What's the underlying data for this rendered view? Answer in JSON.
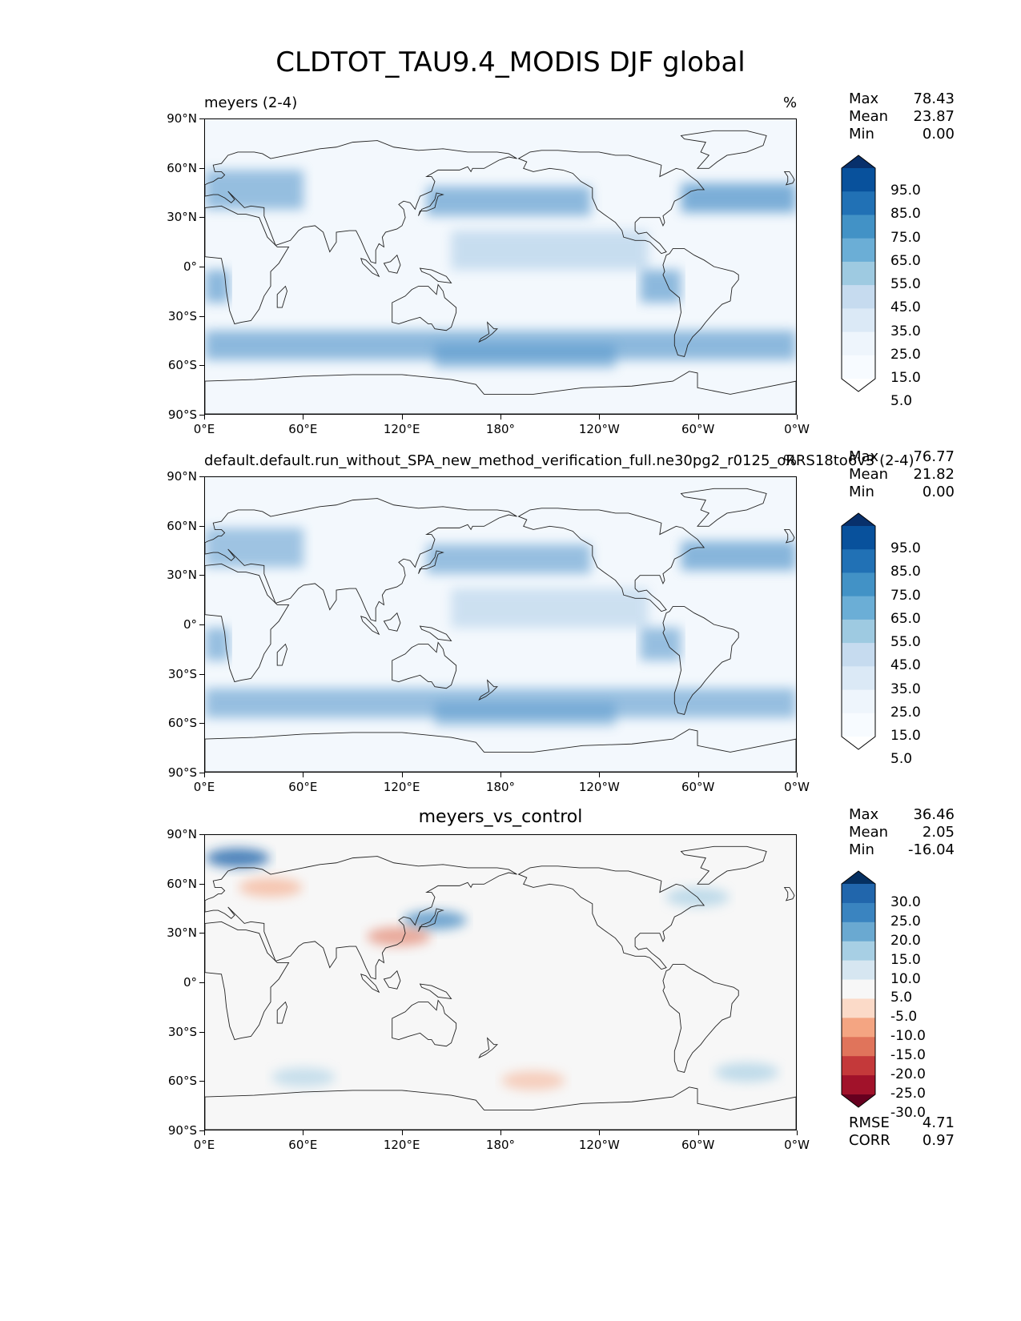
{
  "figure": {
    "title": "CLDTOT_TAU9.4_MODIS DJF global"
  },
  "axes": {
    "yticks": [
      "90°N",
      "60°N",
      "30°N",
      "0°",
      "30°S",
      "60°S",
      "90°S"
    ],
    "xticks": [
      "0°E",
      "60°E",
      "120°E",
      "180°",
      "120°W",
      "60°W",
      "0°W"
    ]
  },
  "panels": [
    {
      "title_left": "meyers (2-4)",
      "title_right": "%",
      "title_center": "",
      "stats": {
        "max_label": "Max",
        "max": "78.43",
        "mean_label": "Mean",
        "mean": "23.87",
        "min_label": "Min",
        "min": "0.00"
      },
      "colorbar": {
        "labels": [
          "95.0",
          "85.0",
          "75.0",
          "65.0",
          "55.0",
          "45.0",
          "35.0",
          "25.0",
          "15.0",
          "5.0"
        ],
        "colors": [
          "#08306b",
          "#08519c",
          "#2171b5",
          "#4292c6",
          "#6baed6",
          "#9ecae1",
          "#c6dbef",
          "#dbe9f6",
          "#eef5fc",
          "#f7fbff",
          "#ffffff"
        ]
      }
    },
    {
      "title_left": "default.default.run_without_SPA_new_method_verification_full.ne30pg2_r0125_oRRS18to6v3 (2-4)",
      "title_right": "%",
      "title_center": "",
      "stats": {
        "max_label": "Max",
        "max": "76.77",
        "mean_label": "Mean",
        "mean": "21.82",
        "min_label": "Min",
        "min": "0.00"
      },
      "colorbar": {
        "labels": [
          "95.0",
          "85.0",
          "75.0",
          "65.0",
          "55.0",
          "45.0",
          "35.0",
          "25.0",
          "15.0",
          "5.0"
        ],
        "colors": [
          "#08306b",
          "#08519c",
          "#2171b5",
          "#4292c6",
          "#6baed6",
          "#9ecae1",
          "#c6dbef",
          "#dbe9f6",
          "#eef5fc",
          "#f7fbff",
          "#ffffff"
        ]
      }
    },
    {
      "title_left": "",
      "title_right": "",
      "title_center": "meyers_vs_control",
      "stats": {
        "max_label": "Max",
        "max": "36.46",
        "mean_label": "Mean",
        "mean": "2.05",
        "min_label": "Min",
        "min": "-16.04"
      },
      "colorbar": {
        "labels": [
          "30.0",
          "25.0",
          "20.0",
          "15.0",
          "10.0",
          "5.0",
          "-5.0",
          "-10.0",
          "-15.0",
          "-20.0",
          "-25.0",
          "-30.0"
        ],
        "colors": [
          "#053061",
          "#2166ac",
          "#3a84c0",
          "#6aa9d1",
          "#a7cfe4",
          "#d6e6f1",
          "#f7f7f7",
          "#fbdac8",
          "#f4a582",
          "#e0745b",
          "#c4393a",
          "#a1122a",
          "#67001f"
        ]
      },
      "rmse_label": "RMSE",
      "rmse": "4.71",
      "corr_label": "CORR",
      "corr": "0.97"
    }
  ]
}
